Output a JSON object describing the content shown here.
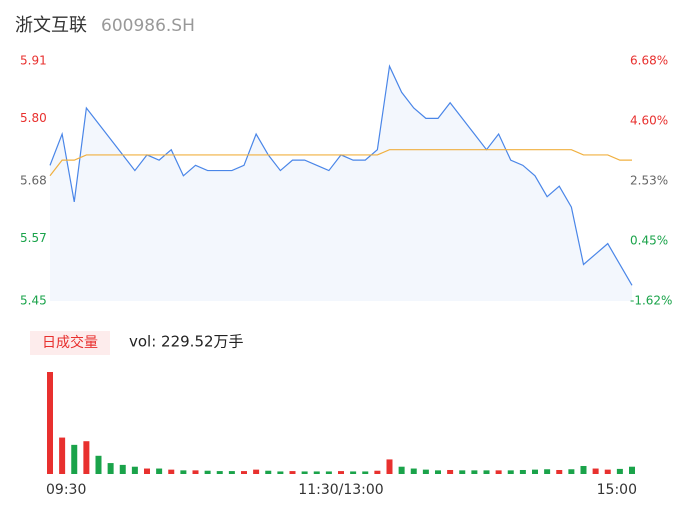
{
  "chart_data": {
    "type": "line",
    "title": "浙文互联",
    "subtitle": "600986.SH",
    "x": [
      "09:30",
      "09:35",
      "09:40",
      "09:45",
      "09:50",
      "09:55",
      "10:00",
      "10:05",
      "10:10",
      "10:15",
      "10:20",
      "10:25",
      "10:30",
      "10:35",
      "10:40",
      "10:45",
      "10:50",
      "10:55",
      "11:00",
      "11:05",
      "11:10",
      "11:15",
      "11:20",
      "11:25",
      "11:30",
      "13:05",
      "13:10",
      "13:15",
      "13:20",
      "13:25",
      "13:30",
      "13:35",
      "13:40",
      "13:45",
      "13:50",
      "13:55",
      "14:00",
      "14:05",
      "14:10",
      "14:15",
      "14:20",
      "14:25",
      "14:30",
      "14:35",
      "14:40",
      "14:45",
      "14:50",
      "14:55",
      "15:00"
    ],
    "series": [
      {
        "color": "#4a86e8",
        "values": [
          5.71,
          5.77,
          5.64,
          5.82,
          5.79,
          5.76,
          5.73,
          5.7,
          5.73,
          5.72,
          5.74,
          5.69,
          5.71,
          5.7,
          5.7,
          5.7,
          5.71,
          5.77,
          5.73,
          5.7,
          5.72,
          5.72,
          5.71,
          5.7,
          5.73,
          5.72,
          5.72,
          5.74,
          5.9,
          5.85,
          5.82,
          5.8,
          5.8,
          5.83,
          5.8,
          5.77,
          5.74,
          5.77,
          5.72,
          5.71,
          5.69,
          5.65,
          5.67,
          5.63,
          5.52,
          5.54,
          5.56,
          5.52,
          5.48
        ]
      },
      {
        "color": "#f0b040",
        "values": [
          5.69,
          5.72,
          5.72,
          5.73,
          5.73,
          5.73,
          5.73,
          5.73,
          5.73,
          5.73,
          5.73,
          5.73,
          5.73,
          5.73,
          5.73,
          5.73,
          5.73,
          5.73,
          5.73,
          5.73,
          5.73,
          5.73,
          5.73,
          5.73,
          5.73,
          5.73,
          5.73,
          5.73,
          5.74,
          5.74,
          5.74,
          5.74,
          5.74,
          5.74,
          5.74,
          5.74,
          5.74,
          5.74,
          5.74,
          5.74,
          5.74,
          5.74,
          5.74,
          5.74,
          5.73,
          5.73,
          5.73,
          5.72,
          5.72
        ]
      }
    ],
    "area_color": "#f3f7fd",
    "ylim": [
      5.45,
      5.91
    ],
    "yticks": [
      5.91,
      {
        "value": 5.8,
        "label": "5.80"
      },
      5.68,
      5.57,
      5.45
    ],
    "ytick_colors": [
      "#e8302e",
      "#e8302e",
      "#666666",
      "#1aa34a",
      "#1aa34a"
    ],
    "y2lim": [
      -1.62,
      6.68
    ],
    "y2ticks": [
      {
        "value": 6.68,
        "label": "6.68%"
      },
      {
        "value": 4.6,
        "label": "4.60%"
      },
      {
        "value": 2.53,
        "label": "2.53%"
      },
      {
        "value": 0.45,
        "label": "0.45%"
      },
      {
        "value": -1.62,
        "label": "-1.62%"
      }
    ],
    "xticks": [
      "09:30",
      {
        "value": "11:30",
        "label": "11:30/13:00"
      },
      "15:00"
    ],
    "grid": false,
    "volume": {
      "label": "日成交量",
      "text": "vol: 229.52万手",
      "values": [
        28,
        10,
        8,
        9,
        5,
        3,
        2.5,
        2,
        1.5,
        1.5,
        1.2,
        1,
        1,
        0.9,
        0.8,
        0.8,
        0.8,
        1.2,
        0.9,
        0.7,
        0.8,
        0.7,
        0.7,
        0.7,
        0.8,
        0.7,
        0.7,
        0.9,
        4,
        2,
        1.5,
        1.2,
        1,
        1.1,
        1,
        1,
        1,
        1,
        1,
        1.1,
        1.2,
        1.3,
        1.1,
        1.3,
        2.2,
        1.5,
        1.2,
        1.4,
        2
      ],
      "colors": [
        "#e8302e",
        "#e8302e",
        "#1aa34a",
        "#e8302e",
        "#1aa34a",
        "#1aa34a",
        "#1aa34a",
        "#1aa34a",
        "#e8302e",
        "#1aa34a",
        "#e8302e",
        "#1aa34a",
        "#e8302e",
        "#1aa34a",
        "#1aa34a",
        "#1aa34a",
        "#e8302e",
        "#e8302e",
        "#1aa34a",
        "#1aa34a",
        "#e8302e",
        "#1aa34a",
        "#1aa34a",
        "#1aa34a",
        "#e8302e",
        "#1aa34a",
        "#1aa34a",
        "#e8302e",
        "#e8302e",
        "#1aa34a",
        "#1aa34a",
        "#1aa34a",
        "#1aa34a",
        "#e8302e",
        "#1aa34a",
        "#1aa34a",
        "#1aa34a",
        "#e8302e",
        "#1aa34a",
        "#1aa34a",
        "#1aa34a",
        "#1aa34a",
        "#e8302e",
        "#1aa34a",
        "#1aa34a",
        "#e8302e",
        "#e8302e",
        "#1aa34a",
        "#1aa34a"
      ]
    }
  }
}
